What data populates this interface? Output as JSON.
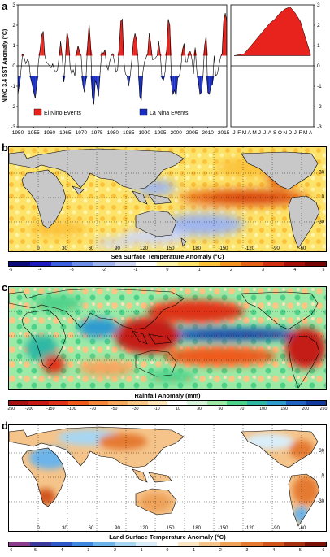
{
  "panels": {
    "a": {
      "letter": "a"
    },
    "b": {
      "letter": "b"
    },
    "c": {
      "letter": "c"
    },
    "d": {
      "letter": "d"
    }
  },
  "colors": {
    "el_nino": "#e8221c",
    "la_nina": "#1c2fc4"
  },
  "chart_data": [
    {
      "type": "area",
      "panel": "a-left",
      "ylabel": "NINO 3.4 SST Anomaly (°C)",
      "ylim": [
        -3,
        3
      ],
      "xlim": [
        1950,
        2016
      ],
      "x_ticks": [
        "1950",
        "1955",
        "1960",
        "1965",
        "1970",
        "1975",
        "1980",
        "1985",
        "1990",
        "1995",
        "2000",
        "2005",
        "2010",
        "2015"
      ],
      "y_ticks": [
        "-3",
        "-2",
        "-1",
        "0",
        "1",
        "2",
        "3"
      ],
      "legend": [
        "El Nino Events",
        "La Nina Events"
      ],
      "series": [
        {
          "name": "El Nino Events",
          "color": "#e8221c"
        },
        {
          "name": "La Nina Events",
          "color": "#1c2fc4"
        }
      ],
      "x": [
        1950.0,
        1950.5,
        1951.0,
        1951.5,
        1952.0,
        1952.5,
        1953.0,
        1953.5,
        1954.0,
        1954.5,
        1955.0,
        1955.5,
        1956.0,
        1956.5,
        1957.0,
        1957.5,
        1958.0,
        1958.5,
        1959.0,
        1959.5,
        1960.0,
        1960.5,
        1961.0,
        1961.5,
        1962.0,
        1962.5,
        1963.0,
        1963.5,
        1964.0,
        1964.5,
        1965.0,
        1965.5,
        1966.0,
        1966.5,
        1967.0,
        1967.5,
        1968.0,
        1968.5,
        1969.0,
        1969.5,
        1970.0,
        1970.5,
        1971.0,
        1971.5,
        1972.0,
        1972.5,
        1973.0,
        1973.5,
        1974.0,
        1974.5,
        1975.0,
        1975.5,
        1976.0,
        1976.5,
        1977.0,
        1977.5,
        1978.0,
        1978.5,
        1979.0,
        1979.5,
        1980.0,
        1980.5,
        1981.0,
        1981.5,
        1982.0,
        1982.5,
        1983.0,
        1983.5,
        1984.0,
        1984.5,
        1985.0,
        1985.5,
        1986.0,
        1986.5,
        1987.0,
        1987.5,
        1988.0,
        1988.5,
        1989.0,
        1989.5,
        1990.0,
        1990.5,
        1991.0,
        1991.5,
        1992.0,
        1992.5,
        1993.0,
        1993.5,
        1994.0,
        1994.5,
        1995.0,
        1995.5,
        1996.0,
        1996.5,
        1997.0,
        1997.5,
        1998.0,
        1998.5,
        1999.0,
        1999.5,
        2000.0,
        2000.5,
        2001.0,
        2001.5,
        2002.0,
        2002.5,
        2003.0,
        2003.5,
        2004.0,
        2004.5,
        2005.0,
        2005.5,
        2006.0,
        2006.5,
        2007.0,
        2007.5,
        2008.0,
        2008.5,
        2009.0,
        2009.5,
        2010.0,
        2010.5,
        2011.0,
        2011.5,
        2012.0,
        2012.5,
        2013.0,
        2013.5,
        2014.0,
        2014.5,
        2015.0,
        2015.5,
        2016.0
      ],
      "values": [
        -1.4,
        -0.9,
        -0.2,
        0.6,
        0.4,
        0.1,
        0.3,
        0.2,
        -0.6,
        -0.9,
        -1.3,
        -1.6,
        -0.9,
        0.2,
        0.8,
        1.5,
        1.7,
        0.5,
        0.2,
        0.1,
        0.0,
        -0.1,
        0.1,
        -0.2,
        -0.3,
        -0.2,
        0.4,
        1.2,
        0.5,
        -0.8,
        0.3,
        1.7,
        1.3,
        -0.1,
        -0.4,
        -0.2,
        -0.5,
        0.6,
        1.0,
        0.7,
        0.5,
        -0.9,
        -1.3,
        -0.7,
        1.0,
        2.1,
        1.0,
        -1.5,
        -1.9,
        -0.7,
        -1.0,
        -1.5,
        -0.3,
        0.7,
        0.6,
        0.8,
        0.0,
        -0.2,
        0.2,
        0.5,
        0.6,
        0.2,
        -0.3,
        -0.2,
        0.9,
        2.2,
        2.3,
        0.2,
        -0.4,
        -0.5,
        -1.0,
        -0.5,
        0.3,
        1.2,
        1.6,
        1.3,
        0.2,
        -1.5,
        -1.7,
        -0.3,
        0.2,
        0.4,
        0.6,
        1.6,
        1.1,
        0.3,
        0.3,
        0.4,
        0.5,
        1.2,
        0.6,
        -0.6,
        -0.7,
        -0.3,
        0.8,
        2.3,
        2.0,
        -0.9,
        -1.4,
        -1.2,
        -1.5,
        -0.6,
        -0.5,
        -0.1,
        0.8,
        1.1,
        0.2,
        0.2,
        0.7,
        0.7,
        0.3,
        -0.4,
        0.9,
        -0.2,
        -0.8,
        -1.4,
        -1.3,
        -0.5,
        1.0,
        1.5,
        -1.3,
        -1.4,
        -1.0,
        -0.9,
        0.5,
        -0.5,
        -0.4,
        0.0,
        0.4,
        0.6,
        2.2,
        2.6,
        2.2
      ]
    },
    {
      "type": "area",
      "panel": "a-right",
      "months": [
        "J",
        "F",
        "M",
        "A",
        "M",
        "J",
        "J",
        "A",
        "S",
        "O",
        "N",
        "D",
        "J",
        "F",
        "M",
        "A"
      ],
      "ylim": [
        -3,
        3
      ],
      "y_ticks": [
        "3",
        "2",
        "1",
        "0",
        "-1",
        "-2",
        "-3"
      ],
      "values": [
        0.5,
        0.55,
        0.6,
        0.9,
        1.2,
        1.5,
        1.8,
        2.1,
        2.3,
        2.6,
        2.8,
        2.9,
        2.6,
        2.2,
        1.4,
        0.6
      ],
      "color": "#e8221c"
    },
    {
      "type": "heatmap",
      "panel": "b",
      "cbar_title": "Sea Surface Temperature Anomaly (°C)",
      "cbar_ticks": [
        "-5",
        "-4",
        "-3",
        "-2",
        "-1",
        "0",
        "1",
        "2",
        "3",
        "4",
        "5"
      ],
      "cbar_colors": [
        "#0a0a7c",
        "#1d1dbf",
        "#3d5fe0",
        "#6e8de8",
        "#9fb5ee",
        "#cfd7f4",
        "#ffffff",
        "#fff4a8",
        "#fde36a",
        "#fbc23a",
        "#f39321",
        "#e56116",
        "#d02f10",
        "#a80f0a",
        "#7a0505"
      ],
      "lon_labels": [
        "0",
        "30",
        "60",
        "90",
        "120",
        "150",
        "180",
        "-150",
        "-120",
        "-90",
        "-60"
      ],
      "lat_labels": [
        "30",
        "0",
        "-30"
      ]
    },
    {
      "type": "heatmap",
      "panel": "c",
      "cbar_title": "Rainfall Anomaly (mm)",
      "cbar_ticks": [
        "-250",
        "-200",
        "-150",
        "-100",
        "-70",
        "-50",
        "-30",
        "-10",
        "10",
        "30",
        "50",
        "70",
        "100",
        "150",
        "200",
        "250"
      ],
      "cbar_colors": [
        "#a50f0f",
        "#c41a12",
        "#e03015",
        "#ef5a1c",
        "#f3863a",
        "#f7a65e",
        "#fac683",
        "#fde3b6",
        "#ffffff",
        "#d6f5d8",
        "#9ceaa6",
        "#4ed28a",
        "#2fb7a4",
        "#2f9ad0",
        "#1d64c0",
        "#123a9a"
      ],
      "lon_labels": [],
      "lat_labels": []
    },
    {
      "type": "heatmap",
      "panel": "d",
      "cbar_title": "Land Surface Temperature Anomaly (°C)",
      "cbar_ticks": [
        "-6",
        "-5",
        "-4",
        "-3",
        "-2",
        "-1",
        "0",
        "1",
        "2",
        "3",
        "4",
        "5",
        "6"
      ],
      "cbar_colors": [
        "#8c3c8c",
        "#3a3a9c",
        "#2f58c8",
        "#3f88e0",
        "#6cb4ea",
        "#a7d6f2",
        "#d9eefa",
        "#ffffff",
        "#fbe5c2",
        "#f5c48a",
        "#eea25a",
        "#e57a32",
        "#d0541c",
        "#a63010",
        "#7a1208"
      ],
      "lon_labels": [
        "0",
        "30",
        "60",
        "90",
        "120",
        "150",
        "180",
        "-150",
        "-120",
        "-90",
        "-60"
      ],
      "lat_labels": [
        "30",
        "0",
        "-30"
      ]
    }
  ]
}
